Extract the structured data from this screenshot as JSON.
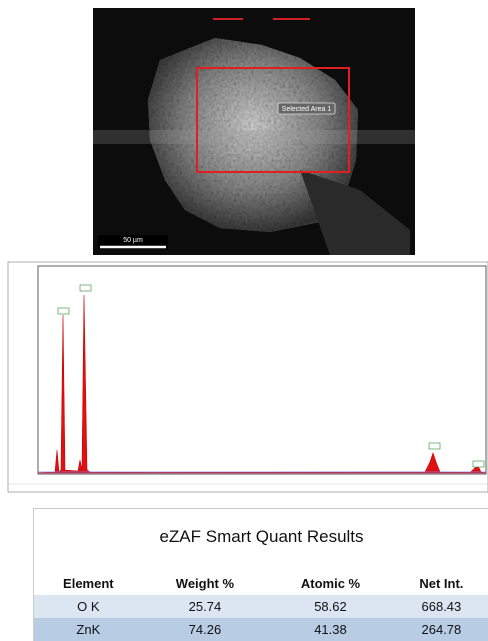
{
  "image": {
    "area_label": "Selected Area 1",
    "scale_label": "50 µm"
  },
  "table": {
    "title": "eZAF Smart Quant Results",
    "headers": [
      "Element",
      "Weight %",
      "Atomic %",
      "Net Int."
    ],
    "rows": [
      [
        "O K",
        "25.74",
        "58.62",
        "668.43"
      ],
      [
        "ZnK",
        "74.26",
        "41.38",
        "264.78"
      ]
    ]
  }
}
